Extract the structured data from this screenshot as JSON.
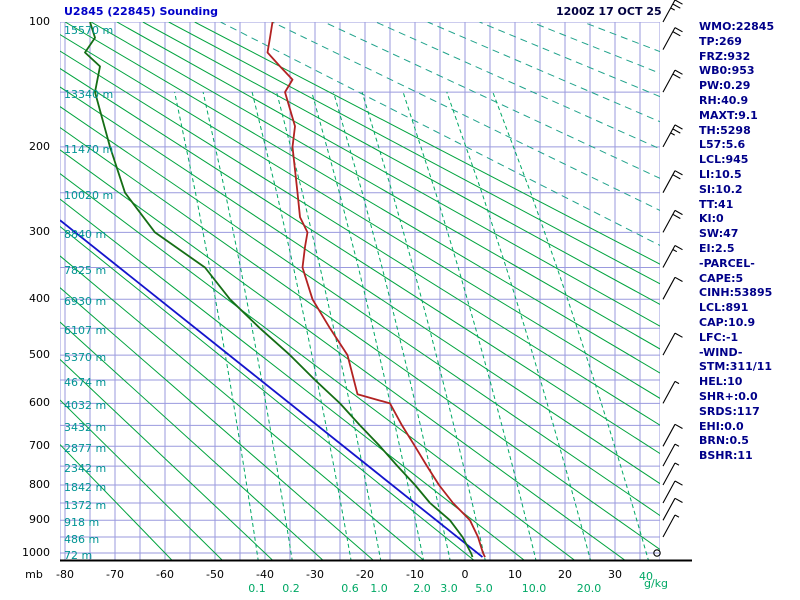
{
  "header": {
    "station_title": "U2845 (22845) Sounding",
    "datetime": "1200Z 17 OCT 25"
  },
  "stats": {
    "lines": [
      "WMO:22845",
      "TP:269",
      "FRZ:932",
      "WB0:953",
      "PW:0.29",
      "RH:40.9",
      "MAXT:9.1",
      "TH:5298",
      "L57:5.6",
      "LCL:945",
      "LI:10.5",
      "SI:10.2",
      "TT:41",
      "KI:0",
      "SW:47",
      "EI:2.5",
      "-PARCEL-",
      "CAPE:5",
      "CINH:53895",
      "LCL:891",
      "CAP:10.9",
      "LFC:-1",
      "-WIND-",
      "STM:311/11",
      "HEL:10",
      "SHR+:0.0",
      "SRDS:117",
      "EHI:0.0",
      "BRN:0.5",
      "BSHR:11"
    ]
  },
  "chart_data": {
    "type": "skewt-stuve-sounding",
    "title": "U2845 (22845) Sounding",
    "valid": "1200Z 17 OCT 25",
    "pressure_axis": {
      "unit": "mb",
      "labeled_levels": [
        100,
        200,
        300,
        400,
        500,
        600,
        700,
        800,
        900,
        1000
      ],
      "gridline_step_mb": 50,
      "top_mb": 100,
      "bottom_mb": 1050
    },
    "temp_axis": {
      "unit": "C",
      "labels": [
        -80,
        -70,
        -60,
        -50,
        -40,
        -30,
        -20,
        -10,
        0,
        10,
        20,
        30
      ],
      "grid_step_c": 5
    },
    "height_labels": [
      {
        "p": 100,
        "label": "15570 m"
      },
      {
        "p": 150,
        "label": "13340 m"
      },
      {
        "p": 200,
        "label": "11470 m"
      },
      {
        "p": 250,
        "label": "10020 m"
      },
      {
        "p": 300,
        "label": "8840 m"
      },
      {
        "p": 350,
        "label": "7825 m"
      },
      {
        "p": 400,
        "label": "6930 m"
      },
      {
        "p": 450,
        "label": "6107 m"
      },
      {
        "p": 500,
        "label": "5370 m"
      },
      {
        "p": 550,
        "label": "4674 m"
      },
      {
        "p": 600,
        "label": "4032 m"
      },
      {
        "p": 650,
        "label": "3432 m"
      },
      {
        "p": 700,
        "label": "2877 m"
      },
      {
        "p": 750,
        "label": "2342 m"
      },
      {
        "p": 800,
        "label": "1842 m"
      },
      {
        "p": 850,
        "label": "1372 m"
      },
      {
        "p": 900,
        "label": "918 m"
      },
      {
        "p": 950,
        "label": "486 m"
      },
      {
        "p": 1000,
        "label": "72 m"
      }
    ],
    "mixing_ratio_labels": {
      "unit": "g/kg",
      "labels": [
        {
          "value": 0.1,
          "text": "0.1"
        },
        {
          "value": 0.2,
          "text": "0.2"
        },
        {
          "value": 0.6,
          "text": "0.6"
        },
        {
          "value": 1.0,
          "text": "1.0"
        },
        {
          "value": 2.0,
          "text": "2.0"
        },
        {
          "value": 3.0,
          "text": "3.0"
        },
        {
          "value": 5.0,
          "text": "5.0"
        },
        {
          "value": 10.0,
          "text": "10.0"
        },
        {
          "value": 20.0,
          "text": "20.0"
        },
        {
          "value": 40.0,
          "text": "40"
        }
      ]
    },
    "dry_adiabats": {
      "theta_c_min": -60,
      "theta_c_max": 150,
      "step": 10
    },
    "dashed_adiabats": {
      "theta_c_min": 160,
      "theta_c_max": 300,
      "step": 20
    },
    "temperature_profile": [
      [
        1013,
        4.0
      ],
      [
        1000,
        3.6
      ],
      [
        950,
        2.6
      ],
      [
        900,
        1.0
      ],
      [
        850,
        -2.4
      ],
      [
        800,
        -5.2
      ],
      [
        750,
        -7.6
      ],
      [
        700,
        -10.0
      ],
      [
        650,
        -12.6
      ],
      [
        600,
        -15.0
      ],
      [
        580,
        -21.5
      ],
      [
        500,
        -23.5
      ],
      [
        450,
        -27.0
      ],
      [
        400,
        -30.5
      ],
      [
        350,
        -32.5
      ],
      [
        320,
        -32.0
      ],
      [
        300,
        -31.5
      ],
      [
        280,
        -33.0
      ],
      [
        250,
        -33.5
      ],
      [
        200,
        -34.5
      ],
      [
        180,
        -34.0
      ],
      [
        150,
        -36.0
      ],
      [
        140,
        -34.5
      ],
      [
        130,
        -37.0
      ],
      [
        120,
        -39.5
      ],
      [
        110,
        -39.0
      ],
      [
        100,
        -38.5
      ]
    ],
    "dewpoint_profile": [
      [
        1013,
        1.5
      ],
      [
        1000,
        1.2
      ],
      [
        950,
        -0.5
      ],
      [
        900,
        -3.0
      ],
      [
        850,
        -7.0
      ],
      [
        800,
        -10.0
      ],
      [
        750,
        -13.5
      ],
      [
        700,
        -17.0
      ],
      [
        650,
        -21.0
      ],
      [
        600,
        -25.0
      ],
      [
        550,
        -30.0
      ],
      [
        500,
        -35.0
      ],
      [
        450,
        -41.0
      ],
      [
        400,
        -47.0
      ],
      [
        350,
        -52.0
      ],
      [
        300,
        -62.0
      ],
      [
        250,
        -68.0
      ],
      [
        200,
        -71.0
      ],
      [
        150,
        -74.0
      ],
      [
        130,
        -73.0
      ],
      [
        120,
        -76.0
      ],
      [
        110,
        -74.0
      ],
      [
        100,
        -75.0
      ]
    ],
    "parcel_line": [
      [
        1013,
        3.5
      ],
      [
        284,
        -81.0
      ]
    ],
    "winds": [
      {
        "p": 100,
        "spd": 25
      },
      {
        "p": 118,
        "spd": 20
      },
      {
        "p": 150,
        "spd": 20
      },
      {
        "p": 200,
        "spd": 25
      },
      {
        "p": 250,
        "spd": 20
      },
      {
        "p": 300,
        "spd": 20
      },
      {
        "p": 350,
        "spd": 15
      },
      {
        "p": 400,
        "spd": 10
      },
      {
        "p": 500,
        "spd": 10
      },
      {
        "p": 600,
        "spd": 5
      },
      {
        "p": 700,
        "spd": 10
      },
      {
        "p": 750,
        "spd": 5
      },
      {
        "p": 800,
        "spd": 5
      },
      {
        "p": 850,
        "spd": 10
      },
      {
        "p": 900,
        "spd": 10
      },
      {
        "p": 950,
        "spd": 5
      },
      {
        "p": 1000,
        "spd": 0,
        "calm": true
      }
    ],
    "colors": {
      "grid": "#9a9ade",
      "dry_adiabat": "#00a33e",
      "dashed_adiabat": "#21a38c",
      "mixing": "#00a865",
      "temperature": "#b22222",
      "dewpoint": "#156e15",
      "parcel": "#1414cc",
      "height_text": "#009494",
      "stats_text": "#000089",
      "title_text": "#0000c8",
      "datetime_text": "#000040",
      "axis_text": "#000000",
      "barb": "#000000"
    }
  }
}
